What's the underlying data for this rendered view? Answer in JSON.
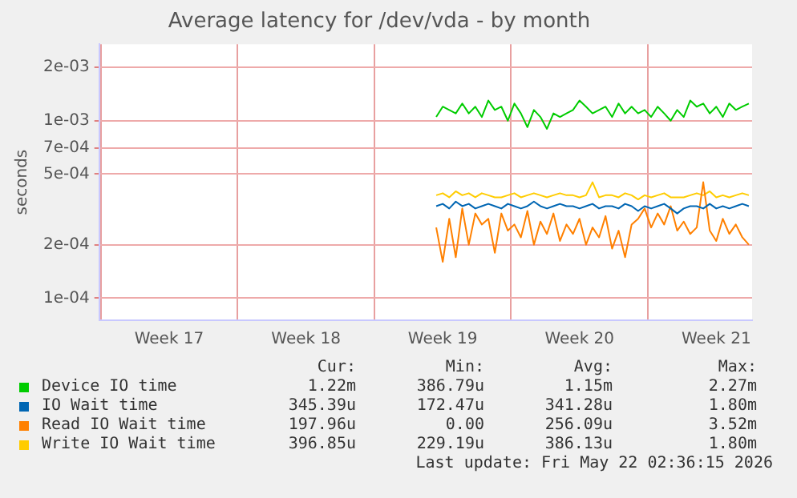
{
  "chart_data": {
    "type": "line",
    "title": "Average latency for /dev/vda - by month",
    "ylabel": "seconds",
    "x": [
      "2026-05-07T04:00",
      "2026-05-07T12:00",
      "2026-05-07T20:00",
      "2026-05-08T04:00",
      "2026-05-08T12:00",
      "2026-05-08T20:00",
      "2026-05-09T04:00",
      "2026-05-09T12:00",
      "2026-05-09T20:00",
      "2026-05-10T04:00",
      "2026-05-10T12:00",
      "2026-05-10T20:00",
      "2026-05-11T04:00",
      "2026-05-11T12:00",
      "2026-05-11T20:00",
      "2026-05-12T04:00",
      "2026-05-12T12:00",
      "2026-05-12T20:00",
      "2026-05-13T04:00",
      "2026-05-13T12:00",
      "2026-05-13T20:00",
      "2026-05-14T04:00",
      "2026-05-14T12:00",
      "2026-05-14T20:00",
      "2026-05-15T04:00",
      "2026-05-15T12:00",
      "2026-05-15T20:00",
      "2026-05-16T04:00",
      "2026-05-16T12:00",
      "2026-05-16T20:00",
      "2026-05-17T04:00",
      "2026-05-17T12:00",
      "2026-05-17T20:00",
      "2026-05-18T04:00",
      "2026-05-18T12:00",
      "2026-05-18T20:00",
      "2026-05-19T04:00",
      "2026-05-19T12:00",
      "2026-05-19T20:00",
      "2026-05-20T04:00",
      "2026-05-20T12:00",
      "2026-05-20T20:00",
      "2026-05-21T04:00",
      "2026-05-21T12:00",
      "2026-05-21T20:00",
      "2026-05-22T04:00",
      "2026-05-22T12:00",
      "2026-05-22T20:00",
      "2026-05-23T04:00"
    ],
    "series": [
      {
        "name": "Device IO time",
        "color": "#00cc00",
        "values": [
          0.00105,
          0.0012,
          0.00115,
          0.0011,
          0.00125,
          0.0011,
          0.0012,
          0.00105,
          0.0013,
          0.00115,
          0.0012,
          0.001,
          0.00125,
          0.0011,
          0.00092,
          0.00115,
          0.00105,
          0.0009,
          0.0011,
          0.00105,
          0.0011,
          0.00115,
          0.0013,
          0.0012,
          0.0011,
          0.00115,
          0.0012,
          0.00105,
          0.00125,
          0.0011,
          0.0012,
          0.0011,
          0.00115,
          0.00105,
          0.0012,
          0.0011,
          0.001,
          0.00115,
          0.00105,
          0.0013,
          0.0012,
          0.00125,
          0.0011,
          0.0012,
          0.00105,
          0.00125,
          0.00115,
          0.0012,
          0.00125
        ]
      },
      {
        "name": "IO Wait time",
        "color": "#0066b3",
        "values": [
          0.00033,
          0.00034,
          0.00032,
          0.00035,
          0.00033,
          0.00034,
          0.00032,
          0.00033,
          0.00034,
          0.00033,
          0.00032,
          0.00034,
          0.00033,
          0.00032,
          0.00033,
          0.00035,
          0.00033,
          0.00032,
          0.00033,
          0.00034,
          0.00033,
          0.00033,
          0.00032,
          0.00033,
          0.00034,
          0.00032,
          0.00033,
          0.00033,
          0.00032,
          0.00034,
          0.00033,
          0.00031,
          0.00033,
          0.00032,
          0.00033,
          0.00034,
          0.00032,
          0.0003,
          0.00032,
          0.00033,
          0.00033,
          0.00032,
          0.00034,
          0.00032,
          0.00033,
          0.00032,
          0.00033,
          0.00034,
          0.00033
        ]
      },
      {
        "name": "Read IO Wait time",
        "color": "#ff8000",
        "values": [
          0.00025,
          0.00016,
          0.00028,
          0.00017,
          0.00032,
          0.0002,
          0.0003,
          0.00026,
          0.00028,
          0.00018,
          0.0003,
          0.00024,
          0.00026,
          0.00022,
          0.00031,
          0.0002,
          0.00027,
          0.00023,
          0.0003,
          0.00021,
          0.00026,
          0.00023,
          0.00028,
          0.0002,
          0.00025,
          0.00022,
          0.00029,
          0.00019,
          0.00024,
          0.00017,
          0.00026,
          0.00028,
          0.00032,
          0.00025,
          0.0003,
          0.00026,
          0.00033,
          0.00024,
          0.00027,
          0.00023,
          0.00025,
          0.00045,
          0.00024,
          0.00021,
          0.00028,
          0.00023,
          0.00026,
          0.00022,
          0.0002
        ]
      },
      {
        "name": "Write IO Wait time",
        "color": "#ffcc00",
        "values": [
          0.00038,
          0.00039,
          0.00037,
          0.0004,
          0.00038,
          0.00039,
          0.00037,
          0.00039,
          0.00038,
          0.00037,
          0.00037,
          0.00038,
          0.00039,
          0.00037,
          0.00038,
          0.00039,
          0.00038,
          0.00037,
          0.00038,
          0.00039,
          0.00038,
          0.00038,
          0.00037,
          0.00038,
          0.00045,
          0.00037,
          0.00038,
          0.00038,
          0.00037,
          0.00039,
          0.00038,
          0.00036,
          0.00038,
          0.00037,
          0.00038,
          0.00039,
          0.00037,
          0.00037,
          0.00037,
          0.00038,
          0.00039,
          0.00038,
          0.0004,
          0.00037,
          0.00038,
          0.00037,
          0.00038,
          0.00039,
          0.00038
        ]
      }
    ],
    "xlim": [
      "2026-04-19T22:00",
      "2026-05-23T08:00"
    ],
    "xticks": [
      {
        "value": "2026-04-20",
        "label": null
      },
      {
        "value": "2026-04-23T12:00",
        "label": "Week 17"
      },
      {
        "value": "2026-04-27",
        "label": null
      },
      {
        "value": "2026-04-30T12:00",
        "label": "Week 18"
      },
      {
        "value": "2026-05-04",
        "label": null
      },
      {
        "value": "2026-05-07T12:00",
        "label": "Week 19"
      },
      {
        "value": "2026-05-11",
        "label": null
      },
      {
        "value": "2026-05-14T12:00",
        "label": "Week 20"
      },
      {
        "value": "2026-05-18",
        "label": null
      },
      {
        "value": "2026-05-21T12:00",
        "label": "Week 21"
      }
    ],
    "ylim": [
      7.5e-05,
      0.0027
    ],
    "yticks": [
      {
        "value": 0.0001,
        "label": "1e-04"
      },
      {
        "value": 0.0002,
        "label": "2e-04"
      },
      {
        "value": 0.0005,
        "label": "5e-04"
      },
      {
        "value": 0.0007,
        "label": "7e-04"
      },
      {
        "value": 0.001,
        "label": "1e-03"
      },
      {
        "value": 0.002,
        "label": "2e-03"
      }
    ],
    "log": "y",
    "grid": true,
    "legend": "bottom",
    "marker": "none",
    "line_style": "solid",
    "annotations": [
      "Cur:",
      "Min:",
      "Avg:",
      "Max:",
      "1.22m",
      "386.79u",
      "1.15m",
      "2.27m",
      "345.39u",
      "172.47u",
      "341.28u",
      "1.80m",
      "197.96u",
      "0.00",
      "256.09u",
      "3.52m",
      "396.85u",
      "229.19u",
      "386.13u",
      "1.80m",
      "Last update: Fri May 22 02:36:15 2026"
    ]
  }
}
